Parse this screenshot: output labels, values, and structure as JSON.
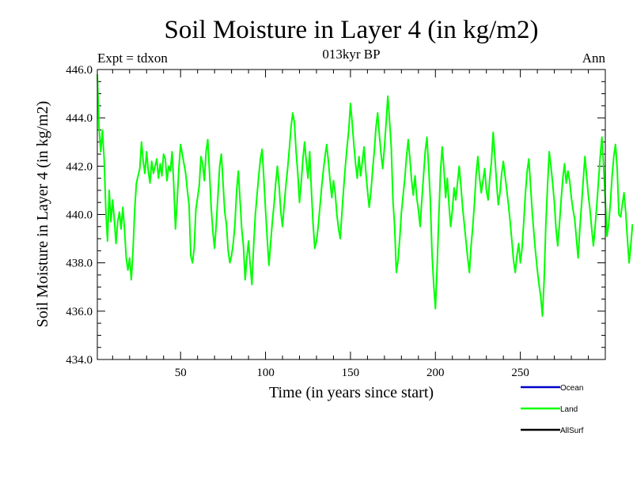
{
  "chart_data": {
    "type": "line",
    "title": "Soil Moisture in Layer 4 (in kg/m2)",
    "subtitle": "013kyr BP",
    "left_label": "Expt = tdxon",
    "right_label": "Ann",
    "xlabel": "Time (in years since start)",
    "ylabel": "Soil Moisture in Layer 4 (in kg/m2)",
    "xlim": [
      1,
      300
    ],
    "ylim": [
      434,
      446
    ],
    "x_ticks": [
      50,
      100,
      150,
      200,
      250
    ],
    "x_tick_labels": [
      "50",
      "100",
      "150",
      "200",
      "250"
    ],
    "y_ticks": [
      434,
      436,
      438,
      440,
      442,
      444,
      446
    ],
    "y_tick_labels": [
      "434.0",
      "436.0",
      "438.0",
      "440.0",
      "442.0",
      "444.0",
      "446.0"
    ],
    "legend": [
      {
        "name": "Ocean",
        "color": "#0000cc"
      },
      {
        "name": "Land",
        "color": "#00ff00"
      },
      {
        "name": "AllSurf",
        "color": "#000000"
      }
    ],
    "series": [
      {
        "name": "Land",
        "color": "#00ff00",
        "x_start": 1,
        "x_step": 1,
        "values": [
          445.8,
          443.6,
          442.6,
          443.5,
          442.3,
          440.2,
          438.9,
          441.0,
          439.7,
          440.6,
          439.8,
          438.8,
          439.7,
          440.1,
          439.4,
          440.3,
          439.4,
          438.2,
          437.7,
          438.2,
          437.3,
          438.5,
          440.2,
          441.3,
          441.6,
          441.9,
          443.0,
          442.2,
          441.7,
          442.6,
          441.8,
          441.3,
          442.2,
          441.7,
          442.0,
          442.3,
          441.5,
          442.1,
          441.6,
          442.5,
          442.3,
          441.4,
          442.0,
          441.8,
          442.6,
          441.2,
          439.4,
          440.6,
          441.9,
          442.9,
          442.5,
          442.1,
          441.7,
          441.0,
          440.4,
          438.3,
          438.0,
          438.6,
          440.2,
          440.7,
          441.2,
          442.4,
          442.1,
          441.4,
          442.6,
          443.1,
          441.8,
          440.3,
          439.3,
          438.6,
          439.6,
          440.8,
          442.0,
          442.5,
          441.3,
          440.1,
          439.6,
          438.5,
          438.0,
          438.3,
          438.8,
          439.6,
          441.0,
          441.8,
          440.6,
          439.4,
          438.7,
          437.3,
          438.2,
          438.9,
          437.9,
          437.1,
          438.7,
          440.0,
          440.8,
          441.6,
          442.3,
          442.7,
          441.5,
          440.2,
          439.0,
          437.9,
          438.8,
          439.7,
          440.4,
          441.3,
          442.0,
          441.2,
          440.1,
          439.5,
          440.4,
          441.2,
          441.9,
          442.7,
          443.6,
          444.2,
          443.8,
          442.6,
          441.7,
          440.5,
          441.3,
          442.3,
          443.0,
          442.2,
          441.5,
          442.6,
          441.0,
          439.6,
          438.6,
          438.9,
          439.5,
          440.3,
          441.1,
          441.8,
          442.4,
          442.9,
          442.2,
          441.4,
          440.7,
          441.4,
          440.9,
          440.0,
          439.4,
          439.0,
          440.1,
          441.1,
          442.0,
          442.8,
          443.5,
          444.6,
          443.8,
          442.9,
          442.1,
          441.5,
          442.4,
          441.6,
          442.2,
          442.8,
          441.8,
          441.0,
          440.3,
          440.9,
          441.8,
          442.6,
          443.6,
          444.2,
          443.3,
          442.5,
          441.9,
          442.8,
          443.8,
          444.9,
          443.9,
          442.8,
          440.6,
          439.5,
          437.6,
          438.1,
          439.0,
          440.1,
          440.8,
          441.5,
          442.4,
          443.1,
          442.3,
          441.4,
          440.8,
          441.6,
          440.7,
          440.2,
          439.5,
          440.6,
          441.6,
          442.6,
          443.2,
          442.0,
          440.6,
          438.4,
          437.1,
          436.1,
          437.8,
          439.9,
          441.8,
          442.8,
          441.9,
          440.7,
          441.5,
          440.4,
          439.5,
          440.2,
          441.1,
          440.6,
          441.3,
          442.0,
          441.2,
          440.3,
          439.6,
          438.9,
          438.2,
          437.6,
          438.7,
          439.5,
          440.5,
          441.7,
          442.4,
          441.5,
          440.9,
          441.4,
          441.9,
          441.0,
          440.6,
          441.5,
          442.2,
          443.4,
          442.4,
          441.3,
          440.4,
          440.9,
          441.7,
          442.2,
          441.6,
          441.0,
          440.4,
          439.7,
          438.9,
          438.1,
          437.6,
          438.3,
          438.8,
          438.0,
          438.6,
          439.7,
          440.9,
          441.8,
          442.3,
          441.2,
          440.1,
          439.2,
          438.4,
          437.7,
          437.1,
          436.6,
          435.8,
          437.3,
          439.6,
          441.2,
          442.6,
          442.0,
          441.3,
          440.5,
          439.4,
          438.7,
          439.6,
          440.6,
          441.5,
          442.1,
          441.3,
          441.8,
          441.4,
          440.7,
          440.2,
          439.8,
          439.0,
          438.2,
          439.4,
          440.4,
          441.4,
          442.4,
          441.6,
          440.8,
          440.2,
          439.4,
          438.7,
          439.5,
          440.4,
          441.4,
          442.4,
          443.2,
          442.0,
          440.6,
          439.1,
          439.6,
          440.5,
          441.6,
          442.4,
          442.9,
          441.9,
          440.0,
          439.9,
          440.4,
          440.9,
          440.1,
          439.0,
          438.0,
          438.7,
          439.6
        ]
      }
    ]
  }
}
